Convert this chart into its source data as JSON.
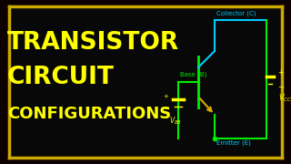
{
  "title_line1": "TRANSISTOR",
  "title_line2": "CIRCUIT",
  "title_line3": "CONFIGURATIONS",
  "title_color": "#FFFF00",
  "bg_outer": "#0d0000",
  "bg_inner": "#080808",
  "border_color": "#CCAA00",
  "circuit_color": "#00EE00",
  "collector_color": "#00CCFF",
  "emitter_arrow_color": "#DDAA00",
  "label_color": "#00CCFF",
  "vcc_color": "#FFFF00",
  "vbb_color": "#FFFF00",
  "circuit_labels": {
    "collector": "Collector (C)",
    "base": "Base (B)",
    "emitter": "Emitter (E)",
    "vcc": "V",
    "vcc_sub": "CC",
    "vbb": "V",
    "vbb_sub": "BB"
  },
  "figsize": [
    3.2,
    1.8
  ],
  "dpi": 100
}
